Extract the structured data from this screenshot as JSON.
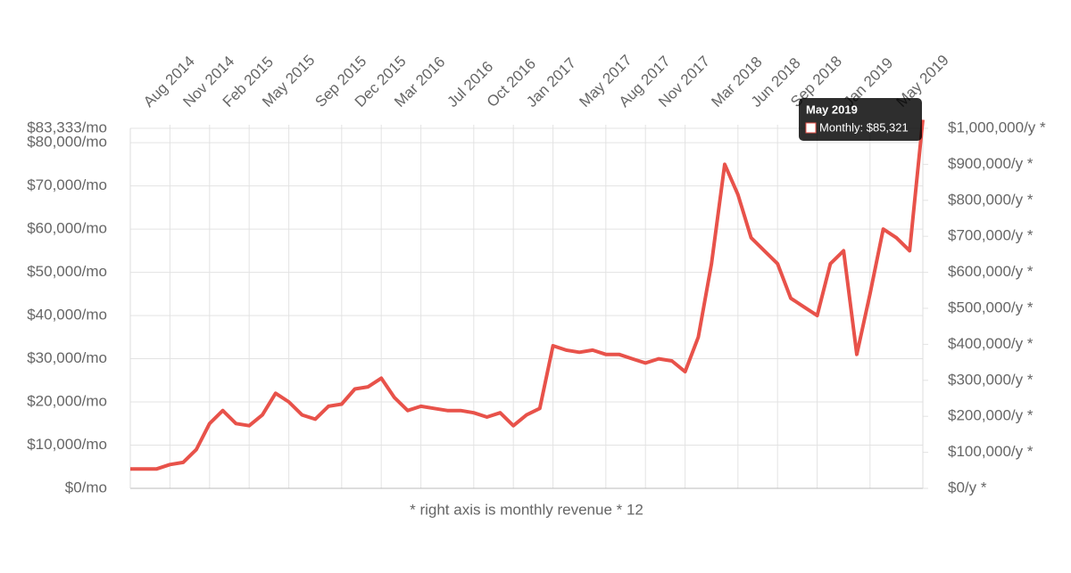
{
  "chart_data": {
    "type": "line",
    "x": [
      "2014-05",
      "2014-06",
      "2014-07",
      "2014-08",
      "2014-09",
      "2014-10",
      "2014-11",
      "2014-12",
      "2015-01",
      "2015-02",
      "2015-03",
      "2015-04",
      "2015-05",
      "2015-06",
      "2015-07",
      "2015-08",
      "2015-09",
      "2015-10",
      "2015-11",
      "2015-12",
      "2016-01",
      "2016-02",
      "2016-03",
      "2016-04",
      "2016-05",
      "2016-06",
      "2016-07",
      "2016-08",
      "2016-09",
      "2016-10",
      "2016-11",
      "2016-12",
      "2017-01",
      "2017-02",
      "2017-03",
      "2017-04",
      "2017-05",
      "2017-06",
      "2017-07",
      "2017-08",
      "2017-09",
      "2017-10",
      "2017-11",
      "2017-12",
      "2018-01",
      "2018-02",
      "2018-03",
      "2018-04",
      "2018-05",
      "2018-06",
      "2018-07",
      "2018-08",
      "2018-09",
      "2018-10",
      "2018-11",
      "2018-12",
      "2019-01",
      "2019-02",
      "2019-03",
      "2019-04",
      "2019-05"
    ],
    "series": [
      {
        "name": "Monthly",
        "color": "#e8524a",
        "values": [
          4500,
          4500,
          4500,
          5500,
          6000,
          9000,
          15000,
          18000,
          15000,
          14500,
          17000,
          22000,
          20000,
          17000,
          16000,
          19000,
          19500,
          23000,
          23500,
          25500,
          21000,
          18000,
          19000,
          18500,
          18000,
          18000,
          17500,
          16500,
          17500,
          14500,
          17000,
          18500,
          33000,
          32000,
          31500,
          32000,
          31000,
          31000,
          30000,
          29000,
          30000,
          29500,
          27000,
          35000,
          52000,
          75000,
          68000,
          58000,
          55000,
          52000,
          44000,
          42000,
          40000,
          52000,
          55000,
          31000,
          45000,
          60000,
          58000,
          55000,
          85321
        ]
      }
    ],
    "xlim": [
      "2014-05",
      "2019-05"
    ],
    "xticks": [
      {
        "value": "2014-08",
        "label": "Aug 2014"
      },
      {
        "value": "2014-11",
        "label": "Nov 2014"
      },
      {
        "value": "2015-02",
        "label": "Feb 2015"
      },
      {
        "value": "2015-05",
        "label": "May 2015"
      },
      {
        "value": "2015-09",
        "label": "Sep 2015"
      },
      {
        "value": "2015-12",
        "label": "Dec 2015"
      },
      {
        "value": "2016-03",
        "label": "Mar 2016"
      },
      {
        "value": "2016-07",
        "label": "Jul 2016"
      },
      {
        "value": "2016-10",
        "label": "Oct 2016"
      },
      {
        "value": "2017-01",
        "label": "Jan 2017"
      },
      {
        "value": "2017-05",
        "label": "May 2017"
      },
      {
        "value": "2017-08",
        "label": "Aug 2017"
      },
      {
        "value": "2017-11",
        "label": "Nov 2017"
      },
      {
        "value": "2018-03",
        "label": "Mar 2018"
      },
      {
        "value": "2018-06",
        "label": "Jun 2018"
      },
      {
        "value": "2018-09",
        "label": "Sep 2018"
      },
      {
        "value": "2019-01",
        "label": "Jan 2019"
      },
      {
        "value": "2019-05",
        "label": "May 2019"
      }
    ],
    "ylim": [
      0,
      83333.33
    ],
    "yticks": [
      {
        "value": 0,
        "label": "$0/mo"
      },
      {
        "value": 10000,
        "label": "$10,000/mo"
      },
      {
        "value": 20000,
        "label": "$20,000/mo"
      },
      {
        "value": 30000,
        "label": "$30,000/mo"
      },
      {
        "value": 40000,
        "label": "$40,000/mo"
      },
      {
        "value": 50000,
        "label": "$50,000/mo"
      },
      {
        "value": 60000,
        "label": "$60,000/mo"
      },
      {
        "value": 70000,
        "label": "$70,000/mo"
      },
      {
        "value": 80000,
        "label": "$80,000/mo"
      },
      {
        "value": 83333.33,
        "label": "$83,333/mo"
      }
    ],
    "y2lim": [
      0,
      1000000
    ],
    "y2ticks": [
      {
        "value": 0,
        "label": "$0/y *"
      },
      {
        "value": 100000,
        "label": "$100,000/y *"
      },
      {
        "value": 200000,
        "label": "$200,000/y *"
      },
      {
        "value": 300000,
        "label": "$300,000/y *"
      },
      {
        "value": 400000,
        "label": "$400,000/y *"
      },
      {
        "value": 500000,
        "label": "$500,000/y *"
      },
      {
        "value": 600000,
        "label": "$600,000/y *"
      },
      {
        "value": 700000,
        "label": "$700,000/y *"
      },
      {
        "value": 800000,
        "label": "$800,000/y *"
      },
      {
        "value": 900000,
        "label": "$900,000/y *"
      },
      {
        "value": 1000000,
        "label": "$1,000,000/y *"
      }
    ],
    "grid": true,
    "footnote": "* right axis is monthly revenue * 12",
    "tooltip": {
      "title": "May 2019",
      "label": "Monthly: $85,321"
    }
  }
}
